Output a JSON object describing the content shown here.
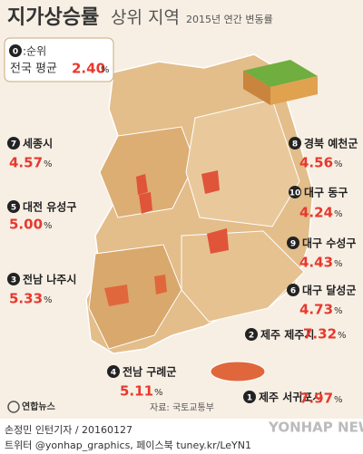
{
  "header": {
    "title": "지가상승률",
    "title_suffix": "상위 지역",
    "subtitle": "2015년 연간 변동률"
  },
  "legend": {
    "marker": "0",
    "marker_text": ":순위",
    "average_label": "전국 평균",
    "average_value": "2.40",
    "average_unit": "%"
  },
  "regions": [
    {
      "rank": 1,
      "name": "제주 서귀포시",
      "value": "7.97",
      "unit": "%"
    },
    {
      "rank": 2,
      "name": "제주 제주시",
      "value": "7.32",
      "unit": "%"
    },
    {
      "rank": 3,
      "name": "전남 나주시",
      "value": "5.33",
      "unit": "%"
    },
    {
      "rank": 4,
      "name": "전남 구례군",
      "value": "5.11",
      "unit": "%"
    },
    {
      "rank": 5,
      "name": "대전 유성구",
      "value": "5.00",
      "unit": "%"
    },
    {
      "rank": 6,
      "name": "대구 달성군",
      "value": "4.73",
      "unit": "%"
    },
    {
      "rank": 7,
      "name": "세종시",
      "value": "4.57",
      "unit": "%"
    },
    {
      "rank": 8,
      "name": "경북 예천군",
      "value": "4.56",
      "unit": "%"
    },
    {
      "rank": 9,
      "name": "대구 수성구",
      "value": "4.43",
      "unit": "%"
    },
    {
      "rank": 10,
      "name": "대구 동구",
      "value": "4.24",
      "unit": "%"
    }
  ],
  "footer": {
    "logo": "연합뉴스",
    "source": "자료: 국토교통부",
    "credit": "손정민 인턴기자 / 20160127",
    "social": "트위터 @yonhap_graphics, 페이스북 tuney.kr/LeYN1",
    "watermark": "YONHAP NEWS"
  }
}
